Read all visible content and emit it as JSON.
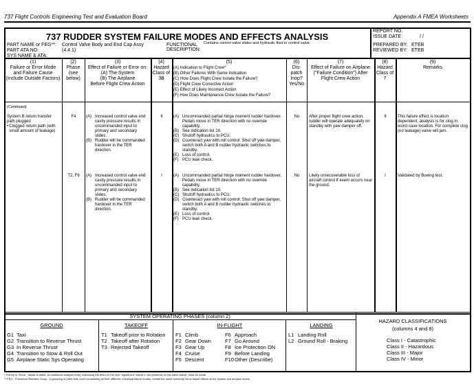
{
  "header": {
    "left": "737 Flight Controls Engineering Test and Evaluation Board",
    "right": "Appendix A   FMEA Worksheets"
  },
  "title": "737 RUDDER SYSTEM FAILURE MODES AND EFFECTS ANALYSIS",
  "part_name_label": "PART NAME or FEG**:",
  "part_name": "Control Valve Body and End Cap Assy",
  "part_ata_label": "PART ATA NO:",
  "part_ata": "(4.4.1)",
  "sys_name_label": "SYS NAME & ATA:",
  "functional_label": "FUNCTIONAL DESCRIPTION:",
  "functional": "Contains control valve slides and hydraulic fluid in control valve.",
  "report": {
    "report_no": "REPORT NO.",
    "issue_date_label": "ISSUE DATE:",
    "issue_date": "/   /",
    "prepared_label": "PREPARED BY:",
    "prepared": "ETEB",
    "reviewed_label": "REVIEWED BY:",
    "reviewed": "ETEB"
  },
  "columns": [
    "(1)\nFailure or Error Mode and Failure Cause (Include Outside Factors)",
    "(2)\nPhase (see below)",
    "(3)\nEffect of Failure or Error on:\n(A)  The System\n(B)  The Airplane\nBefore Flight Crew Action",
    "(4)\nHazard Class of 3B",
    "(5)",
    "(6)\nDis-patch Inop? Yes/No",
    "(7)\nEffect of Failure on Airplane (\"Failure Condition\") After Flight Crew Action",
    "(8)\nHazard Class of 7",
    "(9)\nRemarks"
  ],
  "col5_items": [
    "(A) Indication to Flight Crew*",
    "(B) Other Failures With Same Indication",
    "(C) How Does Flight Crew Isolate the Failure?",
    "(D) Flight Crew Corrective Action",
    "(E) Effect of Likely Incorrect Action",
    "(F) How Does Maintenance Crew Isolate the Failure?"
  ],
  "continued": "(Continued)",
  "failure_mode": "System B return transfer path plugged",
  "failure_cause": "Clogged return path (with small amount of leakage)",
  "rows": [
    {
      "phase": "F4",
      "effects": [
        [
          "(A)",
          "Increased control valve end cavity pressure results in uncommanded input to primary and secondary slides."
        ],
        [
          "(B)",
          "Rudder will be commanded hardover in the TER direction."
        ]
      ],
      "hazard": "II",
      "col5": [
        [
          "(A)",
          "Uncommanded partial hinge moment rudder hardover. Pedals move in TER direction with no override capability."
        ],
        [
          "(B)",
          "See indication list 10."
        ],
        [
          "(C)",
          "Shutoff hydraulics to PCU."
        ],
        [
          "(D)",
          "Counteract yaw with roll control.  Shut off yaw damper, switch both A and B rudder hydraulic switches to standby."
        ],
        [
          "(E)",
          "Loss of control."
        ],
        [
          "(F)",
          "PCU leak check."
        ]
      ],
      "dispatch": "No",
      "effect7": "After proper flight crew action, rudder will operate adequately on standby with yaw damper off.",
      "hazard8": "II",
      "remarks": "This failure effect is location dependent, analysis is for clog in worst case location. For complete clog (no leakage) valve will jam."
    },
    {
      "phase": "T2, F6",
      "effects": [
        [
          "(A)",
          "Increased control valve end cavity pressure results in uncommanded input to primary and secondary slides."
        ],
        [
          "(B)",
          "Rudder will be commanded hardover in the TER direction."
        ]
      ],
      "hazard": "I",
      "col5": [
        [
          "(A)",
          "Uncommanded partial hinge moment rudder hardover. Pedals move in TER direction with no override capability."
        ],
        [
          "(B)",
          "See indication list 10."
        ],
        [
          "(C)",
          "Shutoff hydraulics to PCU."
        ],
        [
          "(D)",
          "Counteract yaw with roll control.  Shut off yaw damper, switch both A and B rudder hydraulic switches to standby."
        ],
        [
          "(E)",
          "Loss of control."
        ],
        [
          "(F)",
          "PCU leak check."
        ]
      ],
      "dispatch": "No",
      "effect7": "Likely unrecoverable loss of aircraft control if event occurs near the ground.",
      "hazard8": "I",
      "remarks": "Validated by Boeing test."
    }
  ],
  "phases": {
    "title": "SYSTEM OPERATING PHASES (column 2)",
    "ground": {
      "title": "GROUND",
      "items": [
        [
          "G1",
          "Taxi"
        ],
        [
          "G2",
          "Transition to Reverse Thrust"
        ],
        [
          "G3",
          "In Reverse Thrust"
        ],
        [
          "G4",
          "Transition to Stow & Roll Out"
        ],
        [
          "G5",
          "Airplane Static Sys Operating"
        ]
      ]
    },
    "takeoff": {
      "title": "TAKEOFF",
      "items": [
        [
          "T1",
          "Takeoff prior to Rotation"
        ],
        [
          "T2",
          "Takeoff after Rotation"
        ],
        [
          "T3",
          "Rejected Takeoff"
        ]
      ]
    },
    "inflight": {
      "title": "IN-FLIGHT",
      "items": [
        [
          "F1",
          "Climb"
        ],
        [
          "F2",
          "Gear Down"
        ],
        [
          "F3",
          "Gear Up"
        ],
        [
          "F4",
          "Cruise"
        ],
        [
          "F5",
          "Descent"
        ]
      ],
      "items2": [
        [
          "F6",
          "Approach"
        ],
        [
          "F7",
          "Go Around"
        ],
        [
          "F8",
          "Ice Protection ON"
        ],
        [
          "F9",
          "Before Landing"
        ],
        [
          "F10",
          "Other (Describe)"
        ]
      ]
    },
    "landing": {
      "title": "LANDING",
      "items": [
        [
          "L1",
          "Landing Roll"
        ],
        [
          "L2",
          "Ground Roll - Braking"
        ]
      ]
    }
  },
  "hazard": {
    "title": "HAZARD CLASSIFICATIONS",
    "subtitle": "(columns 4 and 8)",
    "items": [
      "Class I   - Catastrophic",
      "Class II  - Hazardous",
      "Class III - Major",
      "Class IV - Minor"
    ]
  },
  "footnotes": [
    "*  If entry is \"None\", failure is latent.  An additional analysis entry, examining the effect of the next \"significant\" failure in the presence of this latent failure, must be made.",
    "** FEG - Functional Element Group - A grouping of parts that, even considering all their different, individual failure modes, exhibit the same summary list of failure effects at the system and airplane levels."
  ]
}
